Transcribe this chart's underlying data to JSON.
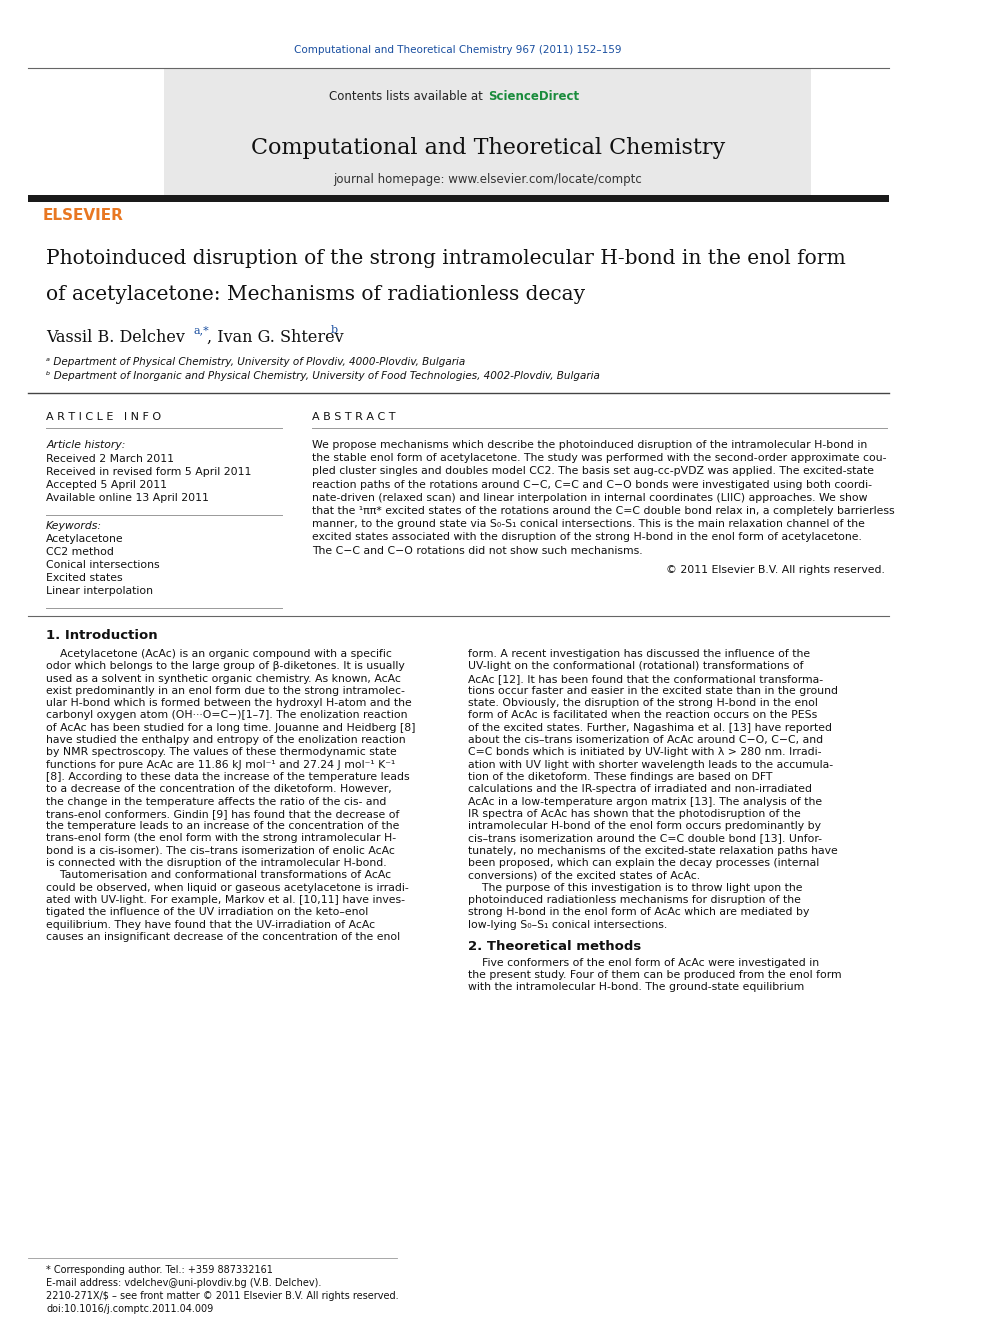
{
  "page_width": 9.92,
  "page_height": 13.23,
  "bg_color": "#ffffff",
  "journal_ref": "Computational and Theoretical Chemistry 967 (2011) 152–159",
  "journal_ref_color": "#1a4fa0",
  "contents_text": "Contents lists available at ",
  "sciencedirect_text": "ScienceDirect",
  "sciencedirect_color": "#1a8c3c",
  "journal_title": "Computational and Theoretical Chemistry",
  "journal_homepage": "journal homepage: www.elsevier.com/locate/comptc",
  "header_bg": "#e8e8e8",
  "dark_bar_color": "#1a1a1a",
  "paper_title_line1": "Photoinduced disruption of the strong intramolecular H-bond in the enol form",
  "paper_title_line2": "of acetylacetone: Mechanisms of radiationless decay",
  "authors": "Vassil B. Delchev",
  "authors_sup1": "a,*",
  "authors_mid": ", Ivan G. Shterev",
  "authors_sup2": "b",
  "affil_a": "ᵃ Department of Physical Chemistry, University of Plovdiv, 4000-Plovdiv, Bulgaria",
  "affil_b": "ᵇ Department of Inorganic and Physical Chemistry, University of Food Technologies, 4002-Plovdiv, Bulgaria",
  "article_info_title": "A R T I C L E   I N F O",
  "abstract_title": "A B S T R A C T",
  "article_history_label": "Article history:",
  "received1": "Received 2 March 2011",
  "received2": "Received in revised form 5 April 2011",
  "accepted": "Accepted 5 April 2011",
  "available": "Available online 13 April 2011",
  "keywords_label": "Keywords:",
  "keywords": [
    "Acetylacetone",
    "CC2 method",
    "Conical intersections",
    "Excited states",
    "Linear interpolation"
  ],
  "copyright": "© 2011 Elsevier B.V. All rights reserved.",
  "intro_title": "1. Introduction",
  "section2_title": "2. Theoretical methods",
  "footer_note": "* Corresponding author. Tel.: +359 887332161",
  "footer_email": "E-mail address: vdelchev@uni-plovdiv.bg (V.B. Delchev).",
  "footer_issn": "2210-271X/$ – see front matter © 2011 Elsevier B.V. All rights reserved.",
  "footer_doi": "doi:10.1016/j.comptc.2011.04.009",
  "elsevier_orange": "#e87722",
  "link_blue": "#1a4fa0",
  "abstract_lines": [
    "We propose mechanisms which describe the photoinduced disruption of the intramolecular H-bond in",
    "the stable enol form of acetylacetone. The study was performed with the second-order approximate cou-",
    "pled cluster singles and doubles model CC2. The basis set aug-cc-pVDZ was applied. The excited-state",
    "reaction paths of the rotations around C−C, C=C and C−O bonds were investigated using both coordi-",
    "nate-driven (relaxed scan) and linear interpolation in internal coordinates (LIIC) approaches. We show",
    "that the ¹ππ* excited states of the rotations around the C=C double bond relax in, a completely barrierless",
    "manner, to the ground state via S₀-S₁ conical intersections. This is the main relaxation channel of the",
    "excited states associated with the disruption of the strong H-bond in the enol form of acetylacetone.",
    "The C−C and C−O rotations did not show such mechanisms."
  ],
  "intro_col1_lines": [
    "    Acetylacetone (AcAc) is an organic compound with a specific",
    "odor which belongs to the large group of β-diketones. It is usually",
    "used as a solvent in synthetic organic chemistry. As known, AcAc",
    "exist predominantly in an enol form due to the strong intramolec-",
    "ular H-bond which is formed between the hydroxyl H-atom and the",
    "carbonyl oxygen atom (OH···O=C−)[1–7]. The enolization reaction",
    "of AcAc has been studied for a long time. Jouanne and Heidberg [8]",
    "have studied the enthalpy and entropy of the enolization reaction",
    "by NMR spectroscopy. The values of these thermodynamic state",
    "functions for pure AcAc are 11.86 kJ mol⁻¹ and 27.24 J mol⁻¹ K⁻¹",
    "[8]. According to these data the increase of the temperature leads",
    "to a decrease of the concentration of the diketoform. However,",
    "the change in the temperature affects the ratio of the cis- and",
    "trans-enol conformers. Gindin [9] has found that the decrease of",
    "the temperature leads to an increase of the concentration of the",
    "trans-enol form (the enol form with the strong intramolecular H-",
    "bond is a cis-isomer). The cis–trans isomerization of enolic AcAc",
    "is connected with the disruption of the intramolecular H-bond.",
    "    Tautomerisation and conformational transformations of AcAc",
    "could be observed, when liquid or gaseous acetylacetone is irradi-",
    "ated with UV-light. For example, Markov et al. [10,11] have inves-",
    "tigated the influence of the UV irradiation on the keto–enol",
    "equilibrium. They have found that the UV-irradiation of AcAc",
    "causes an insignificant decrease of the concentration of the enol"
  ],
  "intro_col2_lines": [
    "form. A recent investigation has discussed the influence of the",
    "UV-light on the conformational (rotational) transformations of",
    "AcAc [12]. It has been found that the conformational transforma-",
    "tions occur faster and easier in the excited state than in the ground",
    "state. Obviously, the disruption of the strong H-bond in the enol",
    "form of AcAc is facilitated when the reaction occurs on the PESs",
    "of the excited states. Further, Nagashima et al. [13] have reported",
    "about the cis–trans isomerization of AcAc around C−O, C−C, and",
    "C=C bonds which is initiated by UV-light with λ > 280 nm. Irradi-",
    "ation with UV light with shorter wavelength leads to the accumula-",
    "tion of the diketoform. These findings are based on DFT",
    "calculations and the IR-spectra of irradiated and non-irradiated",
    "AcAc in a low-temperature argon matrix [13]. The analysis of the",
    "IR spectra of AcAc has shown that the photodisruption of the",
    "intramolecular H-bond of the enol form occurs predominantly by",
    "cis–trans isomerization around the C=C double bond [13]. Unfor-",
    "tunately, no mechanisms of the excited-state relaxation paths have",
    "been proposed, which can explain the decay processes (internal",
    "conversions) of the excited states of AcAc.",
    "    The purpose of this investigation is to throw light upon the",
    "photoinduced radiationless mechanisms for disruption of the",
    "strong H-bond in the enol form of AcAc which are mediated by",
    "low-lying S₀–S₁ conical intersections."
  ],
  "sec2_lines": [
    "    Five conformers of the enol form of AcAc were investigated in",
    "the present study. Four of them can be produced from the enol form",
    "with the intramolecular H-bond. The ground-state equilibrium"
  ]
}
